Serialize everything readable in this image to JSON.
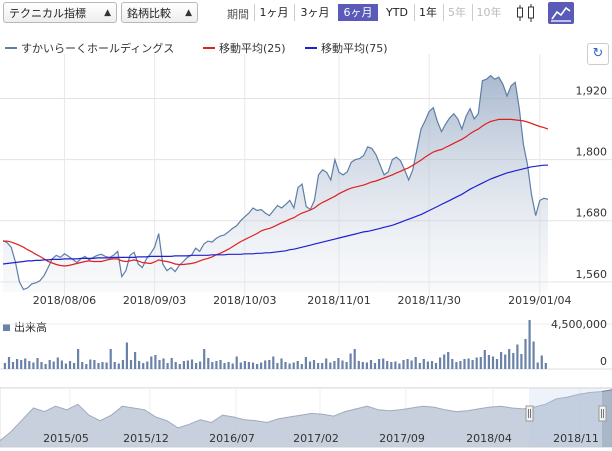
{
  "toolbar": {
    "technical_select": "テクニカル指標",
    "compare_select": "銘柄比較",
    "period_label": "期間",
    "periods": [
      {
        "label": "1ヶ月",
        "state": "normal"
      },
      {
        "label": "3ヶ月",
        "state": "normal"
      },
      {
        "label": "6ヶ月",
        "state": "active"
      },
      {
        "label": "YTD",
        "state": "normal"
      },
      {
        "label": "1年",
        "state": "normal"
      },
      {
        "label": "5年",
        "state": "disabled"
      },
      {
        "label": "10年",
        "state": "disabled"
      }
    ],
    "icons": [
      "candlestick-chart-icon",
      "line-chart-icon"
    ]
  },
  "legend": [
    {
      "name": "すかいらーくホールディングス",
      "color": "#5d7ea8"
    },
    {
      "name": "移動平均(25)",
      "color": "#e02020"
    },
    {
      "name": "移動平均(75)",
      "color": "#2020d0"
    }
  ],
  "volume_label": "出来高",
  "colors": {
    "price": "#5d7ea8",
    "ma25": "#e02020",
    "ma75": "#2020d0",
    "volume": "#6a82a8",
    "nav": "#9aaabf",
    "active": "#5a5ab8"
  },
  "chart_data": [
    {
      "type": "line",
      "title": "",
      "ylim": [
        1540,
        1980
      ],
      "y_ticks": [
        "1,920",
        "1,800",
        "1,680",
        "1,560"
      ],
      "y_tick_values": [
        1920,
        1800,
        1680,
        1560
      ],
      "x_ticks": [
        "2018/08/06",
        "2018/09/03",
        "2018/10/03",
        "2018/11/01",
        "2018/11/30",
        "2019/01/04"
      ],
      "x_tick_index": [
        15,
        37,
        59,
        82,
        104,
        131
      ],
      "series": [
        {
          "name": "すかいらーくホールディングス",
          "values": [
            1641,
            1637,
            1628,
            1600,
            1560,
            1545,
            1548,
            1556,
            1558,
            1562,
            1572,
            1588,
            1605,
            1612,
            1608,
            1615,
            1610,
            1604,
            1598,
            1605,
            1610,
            1603,
            1608,
            1612,
            1614,
            1610,
            1608,
            1612,
            1620,
            1570,
            1582,
            1612,
            1618,
            1595,
            1588,
            1605,
            1615,
            1628,
            1655,
            1595,
            1582,
            1588,
            1580,
            1592,
            1600,
            1608,
            1612,
            1626,
            1620,
            1634,
            1640,
            1638,
            1645,
            1650,
            1652,
            1658,
            1665,
            1670,
            1680,
            1688,
            1695,
            1705,
            1700,
            1702,
            1695,
            1690,
            1700,
            1710,
            1705,
            1712,
            1720,
            1705,
            1745,
            1752,
            1708,
            1702,
            1720,
            1770,
            1780,
            1775,
            1760,
            1800,
            1775,
            1770,
            1776,
            1795,
            1800,
            1802,
            1808,
            1825,
            1822,
            1810,
            1790,
            1770,
            1776,
            1800,
            1805,
            1798,
            1780,
            1760,
            1780,
            1820,
            1860,
            1876,
            1895,
            1902,
            1875,
            1855,
            1870,
            1882,
            1890,
            1880,
            1860,
            1885,
            1900,
            1880,
            1890,
            1955,
            1958,
            1965,
            1958,
            1962,
            1948,
            1925,
            1945,
            1952,
            1900,
            1830,
            1790,
            1730,
            1690,
            1720,
            1724,
            1722
          ]
        },
        {
          "name": "移動平均(25)",
          "values": [
            1640,
            1640,
            1638,
            1635,
            1632,
            1628,
            1623,
            1619,
            1614,
            1610,
            1605,
            1600,
            1597,
            1594,
            1592,
            1591,
            1592,
            1594,
            1596,
            1598,
            1600,
            1601,
            1600,
            1600,
            1600,
            1602,
            1604,
            1605,
            1605,
            1601,
            1600,
            1601,
            1603,
            1601,
            1598,
            1597,
            1596,
            1599,
            1603,
            1601,
            1600,
            1598,
            1595,
            1594,
            1594,
            1595,
            1596,
            1598,
            1601,
            1604,
            1606,
            1609,
            1613,
            1616,
            1620,
            1624,
            1629,
            1634,
            1639,
            1643,
            1647,
            1651,
            1655,
            1660,
            1663,
            1665,
            1668,
            1672,
            1676,
            1679,
            1683,
            1686,
            1691,
            1695,
            1698,
            1701,
            1705,
            1711,
            1716,
            1720,
            1724,
            1728,
            1733,
            1737,
            1741,
            1744,
            1746,
            1748,
            1750,
            1753,
            1756,
            1758,
            1761,
            1764,
            1767,
            1770,
            1774,
            1777,
            1781,
            1784,
            1789,
            1794,
            1799,
            1805,
            1810,
            1815,
            1818,
            1820,
            1824,
            1828,
            1832,
            1836,
            1840,
            1845,
            1851,
            1856,
            1860,
            1866,
            1871,
            1875,
            1877,
            1879,
            1879,
            1879,
            1879,
            1878,
            1877,
            1876,
            1874,
            1871,
            1868,
            1865,
            1863,
            1860
          ]
        },
        {
          "name": "移動平均(75)",
          "values": [
            1595,
            1596,
            1597,
            1598,
            1599,
            1600,
            1601,
            1601,
            1602,
            1602,
            1603,
            1603,
            1604,
            1604,
            1604,
            1605,
            1605,
            1605,
            1605,
            1606,
            1606,
            1606,
            1606,
            1607,
            1607,
            1607,
            1607,
            1608,
            1608,
            1608,
            1608,
            1608,
            1608,
            1609,
            1609,
            1609,
            1610,
            1610,
            1610,
            1610,
            1610,
            1610,
            1611,
            1611,
            1611,
            1611,
            1612,
            1612,
            1612,
            1612,
            1612,
            1613,
            1613,
            1613,
            1613,
            1614,
            1614,
            1614,
            1614,
            1615,
            1615,
            1615,
            1616,
            1616,
            1617,
            1617,
            1618,
            1619,
            1620,
            1621,
            1623,
            1624,
            1626,
            1628,
            1630,
            1632,
            1634,
            1636,
            1638,
            1640,
            1642,
            1644,
            1646,
            1648,
            1650,
            1652,
            1654,
            1656,
            1658,
            1659,
            1661,
            1663,
            1665,
            1667,
            1669,
            1671,
            1674,
            1677,
            1680,
            1683,
            1686,
            1689,
            1692,
            1696,
            1700,
            1704,
            1708,
            1712,
            1716,
            1720,
            1724,
            1728,
            1732,
            1737,
            1742,
            1746,
            1750,
            1754,
            1758,
            1762,
            1765,
            1768,
            1771,
            1774,
            1776,
            1778,
            1780,
            1782,
            1784,
            1786,
            1787,
            1788,
            1789,
            1789
          ]
        }
      ]
    },
    {
      "type": "bar",
      "title": "出来高",
      "ylim": [
        0,
        5000000
      ],
      "y_ticks": [
        "4,500,000",
        "0"
      ],
      "y_tick_values": [
        4500000,
        0
      ],
      "series": [
        {
          "name": "出来高",
          "values": [
            600000,
            1200000,
            700000,
            1000000,
            900000,
            1050000,
            800000,
            650000,
            1100000,
            700000,
            500000,
            900000,
            750000,
            1150000,
            850000,
            550000,
            800000,
            600000,
            2000000,
            700000,
            500000,
            950000,
            900000,
            600000,
            700000,
            650000,
            2000000,
            700000,
            550000,
            900000,
            2650000,
            900000,
            1700000,
            800000,
            600000,
            750000,
            1250000,
            1400000,
            900000,
            1050000,
            600000,
            1100000,
            700000,
            500000,
            800000,
            850000,
            950000,
            600000,
            750000,
            2000000,
            1100000,
            700000,
            800000,
            900000,
            600000,
            700000,
            550000,
            1250000,
            650000,
            800000,
            700000,
            650000,
            500000,
            650000,
            850000,
            900000,
            1250000,
            600000,
            1050000,
            700000,
            550000,
            650000,
            800000,
            500000,
            1200000,
            750000,
            900000,
            600000,
            600000,
            1050000,
            650000,
            800000,
            1100000,
            850000,
            700000,
            1550000,
            2000000,
            800000,
            700000,
            650000,
            900000,
            600000,
            1000000,
            1050000,
            800000,
            700000,
            750000,
            550000,
            900000,
            1000000,
            850000,
            1200000,
            600000,
            1000000,
            750000,
            800000,
            600000,
            1150000,
            1450000,
            1700000,
            1000000,
            700000,
            800000,
            1000000,
            1050000,
            900000,
            1150000,
            1200000,
            1900000,
            1400000,
            1250000,
            1000000,
            1700000,
            1450000,
            2000000,
            1600000,
            2450000,
            1500000,
            3000000,
            4900000,
            2750000,
            650000,
            1350000,
            600000
          ]
        }
      ]
    },
    {
      "type": "area",
      "title": "",
      "x_ticks": [
        "2015/05",
        "2015/12",
        "2016/07",
        "2017/02",
        "2017/09",
        "2018/04",
        "2018/11"
      ],
      "series": [
        {
          "name": "",
          "values": [
            1420,
            1520,
            1650,
            1780,
            1740,
            1800,
            1760,
            1820,
            1700,
            1640,
            1700,
            1800,
            1780,
            1760,
            1680,
            1640,
            1560,
            1600,
            1650,
            1620,
            1700,
            1680,
            1650,
            1640,
            1620,
            1660,
            1680,
            1700,
            1720,
            1710,
            1690,
            1740,
            1770,
            1800,
            1760,
            1750,
            1760,
            1780,
            1800,
            1790,
            1760,
            1740,
            1750,
            1770,
            1790,
            1800,
            1780,
            1770,
            1790,
            1820,
            1880,
            1900,
            1930,
            1950,
            1960,
            1980
          ]
        }
      ],
      "selection_start": "2018/07",
      "selection_end": "2019/01"
    }
  ]
}
